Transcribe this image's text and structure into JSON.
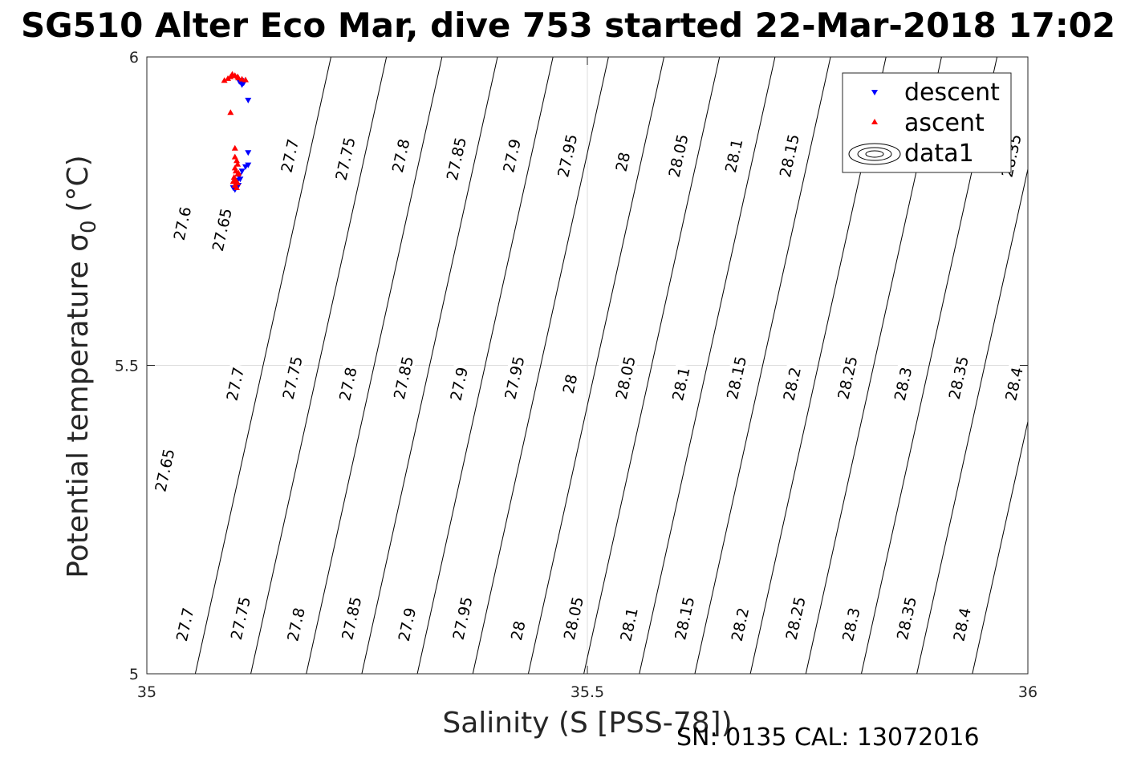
{
  "chart_data": {
    "type": "scatter",
    "title": "SG510 Alter Eco Mar, dive 753 started 22-Mar-2018 17:02",
    "xlabel": "Salinity (S [PSS-78])",
    "ylabel": "Potential temperature σ",
    "ylabel_sub": "0",
    "ylabel_unit": "(°C)",
    "xlim": [
      35,
      36
    ],
    "ylim": [
      5,
      6
    ],
    "x_ticks": [
      35,
      35.5,
      36
    ],
    "x_tick_labels": [
      "35",
      "35.5",
      "36"
    ],
    "y_ticks": [
      5,
      5.5,
      6
    ],
    "y_tick_labels": [
      "5",
      "5.5",
      "6"
    ],
    "grid": true,
    "legend_position": "top-right",
    "legend": [
      "descent",
      "ascent",
      "data1"
    ],
    "series": [
      {
        "name": "descent",
        "marker": "triangle-down",
        "color": "#0000ff",
        "points": [
          [
            35.108,
            5.955
          ],
          [
            35.105,
            5.96
          ],
          [
            35.11,
            5.958
          ],
          [
            35.107,
            5.962
          ],
          [
            35.115,
            5.93
          ],
          [
            35.115,
            5.845
          ],
          [
            35.115,
            5.825
          ],
          [
            35.112,
            5.822
          ],
          [
            35.108,
            5.815
          ],
          [
            35.105,
            5.808
          ],
          [
            35.103,
            5.8
          ],
          [
            35.1,
            5.795
          ],
          [
            35.102,
            5.79
          ],
          [
            35.098,
            5.788
          ],
          [
            35.1,
            5.785
          ],
          [
            35.104,
            5.792
          ],
          [
            35.106,
            5.802
          ]
        ]
      },
      {
        "name": "ascent",
        "marker": "triangle-up",
        "color": "#ff0000",
        "points": [
          [
            35.088,
            5.962
          ],
          [
            35.095,
            5.968
          ],
          [
            35.1,
            5.97
          ],
          [
            35.104,
            5.966
          ],
          [
            35.108,
            5.964
          ],
          [
            35.112,
            5.963
          ],
          [
            35.092,
            5.965
          ],
          [
            35.097,
            5.972
          ],
          [
            35.103,
            5.968
          ],
          [
            35.095,
            5.91
          ],
          [
            35.1,
            5.852
          ],
          [
            35.1,
            5.838
          ],
          [
            35.102,
            5.832
          ],
          [
            35.103,
            5.826
          ],
          [
            35.1,
            5.82
          ],
          [
            35.101,
            5.815
          ],
          [
            35.103,
            5.81
          ],
          [
            35.099,
            5.805
          ],
          [
            35.101,
            5.8
          ],
          [
            35.103,
            5.796
          ],
          [
            35.1,
            5.792
          ],
          [
            35.102,
            5.788
          ],
          [
            35.098,
            5.798
          ],
          [
            35.104,
            5.812
          ]
        ]
      }
    ],
    "contours": {
      "name": "data1",
      "color": "#000000",
      "levels": [
        27.6,
        27.65,
        27.7,
        27.75,
        27.8,
        27.85,
        27.9,
        27.95,
        28,
        28.05,
        28.1,
        28.15,
        28.2,
        28.25,
        28.3,
        28.35,
        28.4
      ],
      "level_labels": [
        "27.6",
        "27.65",
        "27.7",
        "27.75",
        "27.8",
        "27.85",
        "27.9",
        "27.95",
        "28",
        "28.05",
        "28.1",
        "28.15",
        "28.2",
        "28.25",
        "28.3",
        "28.35",
        "28.4"
      ],
      "reference_temperature": 5,
      "reference_salinity_at_first_level": 35.055,
      "level_spacing_salinity": 0.063,
      "isopycnal_slope_salinity_per_degC": 0.154,
      "top_row_labels": [
        {
          "level": "27.6",
          "x": 35.04,
          "t": 5.73
        },
        {
          "level": "27.65",
          "x": 35.085,
          "t": 5.72
        },
        {
          "level": "27.7",
          "x": 35.162,
          "t": 5.84
        },
        {
          "level": "27.75",
          "x": 35.225,
          "t": 5.835
        },
        {
          "level": "27.8",
          "x": 35.288,
          "t": 5.84
        },
        {
          "level": "27.85",
          "x": 35.351,
          "t": 5.835
        },
        {
          "level": "27.9",
          "x": 35.414,
          "t": 5.84
        },
        {
          "level": "27.95",
          "x": 35.477,
          "t": 5.84
        },
        {
          "level": "28",
          "x": 35.54,
          "t": 5.83
        },
        {
          "level": "28.05",
          "x": 35.603,
          "t": 5.84
        },
        {
          "level": "28.1",
          "x": 35.666,
          "t": 5.84
        },
        {
          "level": "28.15",
          "x": 35.729,
          "t": 5.84
        },
        {
          "level": "28.35",
          "x": 35.981,
          "t": 5.84
        }
      ],
      "middle_row_labels": [
        {
          "level": "27.65",
          "x": 35.02,
          "t": 5.33
        },
        {
          "level": "27.7",
          "x": 35.1,
          "t": 5.47
        },
        {
          "level": "27.75",
          "x": 35.165,
          "t": 5.48
        },
        {
          "level": "27.8",
          "x": 35.228,
          "t": 5.47
        },
        {
          "level": "27.85",
          "x": 35.291,
          "t": 5.48
        },
        {
          "level": "27.9",
          "x": 35.354,
          "t": 5.47
        },
        {
          "level": "27.95",
          "x": 35.417,
          "t": 5.48
        },
        {
          "level": "28",
          "x": 35.48,
          "t": 5.47
        },
        {
          "level": "28.05",
          "x": 35.543,
          "t": 5.48
        },
        {
          "level": "28.1",
          "x": 35.606,
          "t": 5.47
        },
        {
          "level": "28.15",
          "x": 35.669,
          "t": 5.48
        },
        {
          "level": "28.2",
          "x": 35.732,
          "t": 5.47
        },
        {
          "level": "28.25",
          "x": 35.795,
          "t": 5.48
        },
        {
          "level": "28.3",
          "x": 35.858,
          "t": 5.47
        },
        {
          "level": "28.35",
          "x": 35.921,
          "t": 5.48
        },
        {
          "level": "28.4",
          "x": 35.984,
          "t": 5.47
        }
      ],
      "bottom_row_labels": [
        {
          "level": "27.7",
          "x": 35.043,
          "t": 5.08
        },
        {
          "level": "27.75",
          "x": 35.106,
          "t": 5.09
        },
        {
          "level": "27.8",
          "x": 35.169,
          "t": 5.08
        },
        {
          "level": "27.85",
          "x": 35.232,
          "t": 5.09
        },
        {
          "level": "27.9",
          "x": 35.295,
          "t": 5.08
        },
        {
          "level": "27.95",
          "x": 35.358,
          "t": 5.09
        },
        {
          "level": "28",
          "x": 35.421,
          "t": 5.07
        },
        {
          "level": "28.05",
          "x": 35.484,
          "t": 5.09
        },
        {
          "level": "28.1",
          "x": 35.547,
          "t": 5.08
        },
        {
          "level": "28.15",
          "x": 35.61,
          "t": 5.09
        },
        {
          "level": "28.2",
          "x": 35.673,
          "t": 5.08
        },
        {
          "level": "28.25",
          "x": 35.736,
          "t": 5.09
        },
        {
          "level": "28.3",
          "x": 35.799,
          "t": 5.08
        },
        {
          "level": "28.35",
          "x": 35.862,
          "t": 5.09
        },
        {
          "level": "28.4",
          "x": 35.925,
          "t": 5.08
        }
      ]
    }
  },
  "footer": {
    "serial_calibration": "SN: 0135  CAL: 13072016"
  }
}
